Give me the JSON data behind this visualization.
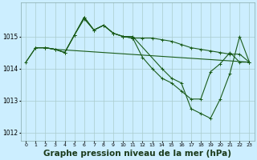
{
  "background_color": "#cceeff",
  "grid_color": "#aacccc",
  "line_color": "#1a5c1a",
  "xlabel": "Graphe pression niveau de la mer (hPa)",
  "xlabel_fontsize": 7.5,
  "ylim": [
    1011.75,
    1016.05
  ],
  "xlim": [
    -0.5,
    23.5
  ],
  "yticks": [
    1012,
    1013,
    1014,
    1015
  ],
  "xticks": [
    0,
    1,
    2,
    3,
    4,
    5,
    6,
    7,
    8,
    9,
    10,
    11,
    12,
    13,
    14,
    15,
    16,
    17,
    18,
    19,
    20,
    21,
    22,
    23
  ],
  "series": [
    {
      "x": [
        0,
        1,
        2,
        3,
        23
      ],
      "y": [
        1014.2,
        1014.65,
        1014.65,
        1014.6,
        1014.2
      ],
      "marker": false,
      "lw": 0.8
    },
    {
      "x": [
        1,
        2,
        3,
        4,
        5,
        6,
        7,
        8,
        9,
        10,
        11,
        12,
        13,
        14,
        15,
        16,
        17,
        18,
        19,
        20,
        21,
        22,
        23
      ],
      "y": [
        1014.65,
        1014.65,
        1014.6,
        1014.5,
        1015.05,
        1015.55,
        1015.2,
        1015.35,
        1015.1,
        1015.0,
        1014.95,
        1014.95,
        1014.95,
        1014.9,
        1014.85,
        1014.75,
        1014.65,
        1014.6,
        1014.55,
        1014.5,
        1014.45,
        1014.45,
        1014.2
      ],
      "marker": true,
      "lw": 0.8
    },
    {
      "x": [
        1,
        2,
        3,
        4,
        5,
        6,
        7,
        8,
        9,
        10,
        11,
        14,
        15,
        16,
        17,
        18,
        19,
        20,
        21,
        22,
        23
      ],
      "y": [
        1014.65,
        1014.65,
        1014.6,
        1014.5,
        1015.05,
        1015.6,
        1015.2,
        1015.35,
        1015.1,
        1015.0,
        1015.0,
        1014.0,
        1013.7,
        1013.55,
        1012.75,
        1012.6,
        1012.45,
        1013.05,
        1013.85,
        1015.0,
        1014.2
      ],
      "marker": true,
      "lw": 0.8
    },
    {
      "x": [
        0,
        1,
        2,
        3,
        4,
        5,
        6,
        7,
        8,
        9,
        10,
        11,
        12,
        13,
        14,
        15,
        16,
        17,
        18,
        19,
        20,
        21,
        22,
        23
      ],
      "y": [
        1014.2,
        1014.65,
        1014.65,
        1014.6,
        1014.5,
        1015.05,
        1015.6,
        1015.2,
        1015.35,
        1015.1,
        1015.0,
        1014.95,
        1014.35,
        1014.0,
        1013.7,
        1013.55,
        1013.3,
        1013.05,
        1013.05,
        1013.9,
        1014.15,
        1014.5,
        1014.2,
        1014.2
      ],
      "marker": true,
      "lw": 0.8
    }
  ]
}
